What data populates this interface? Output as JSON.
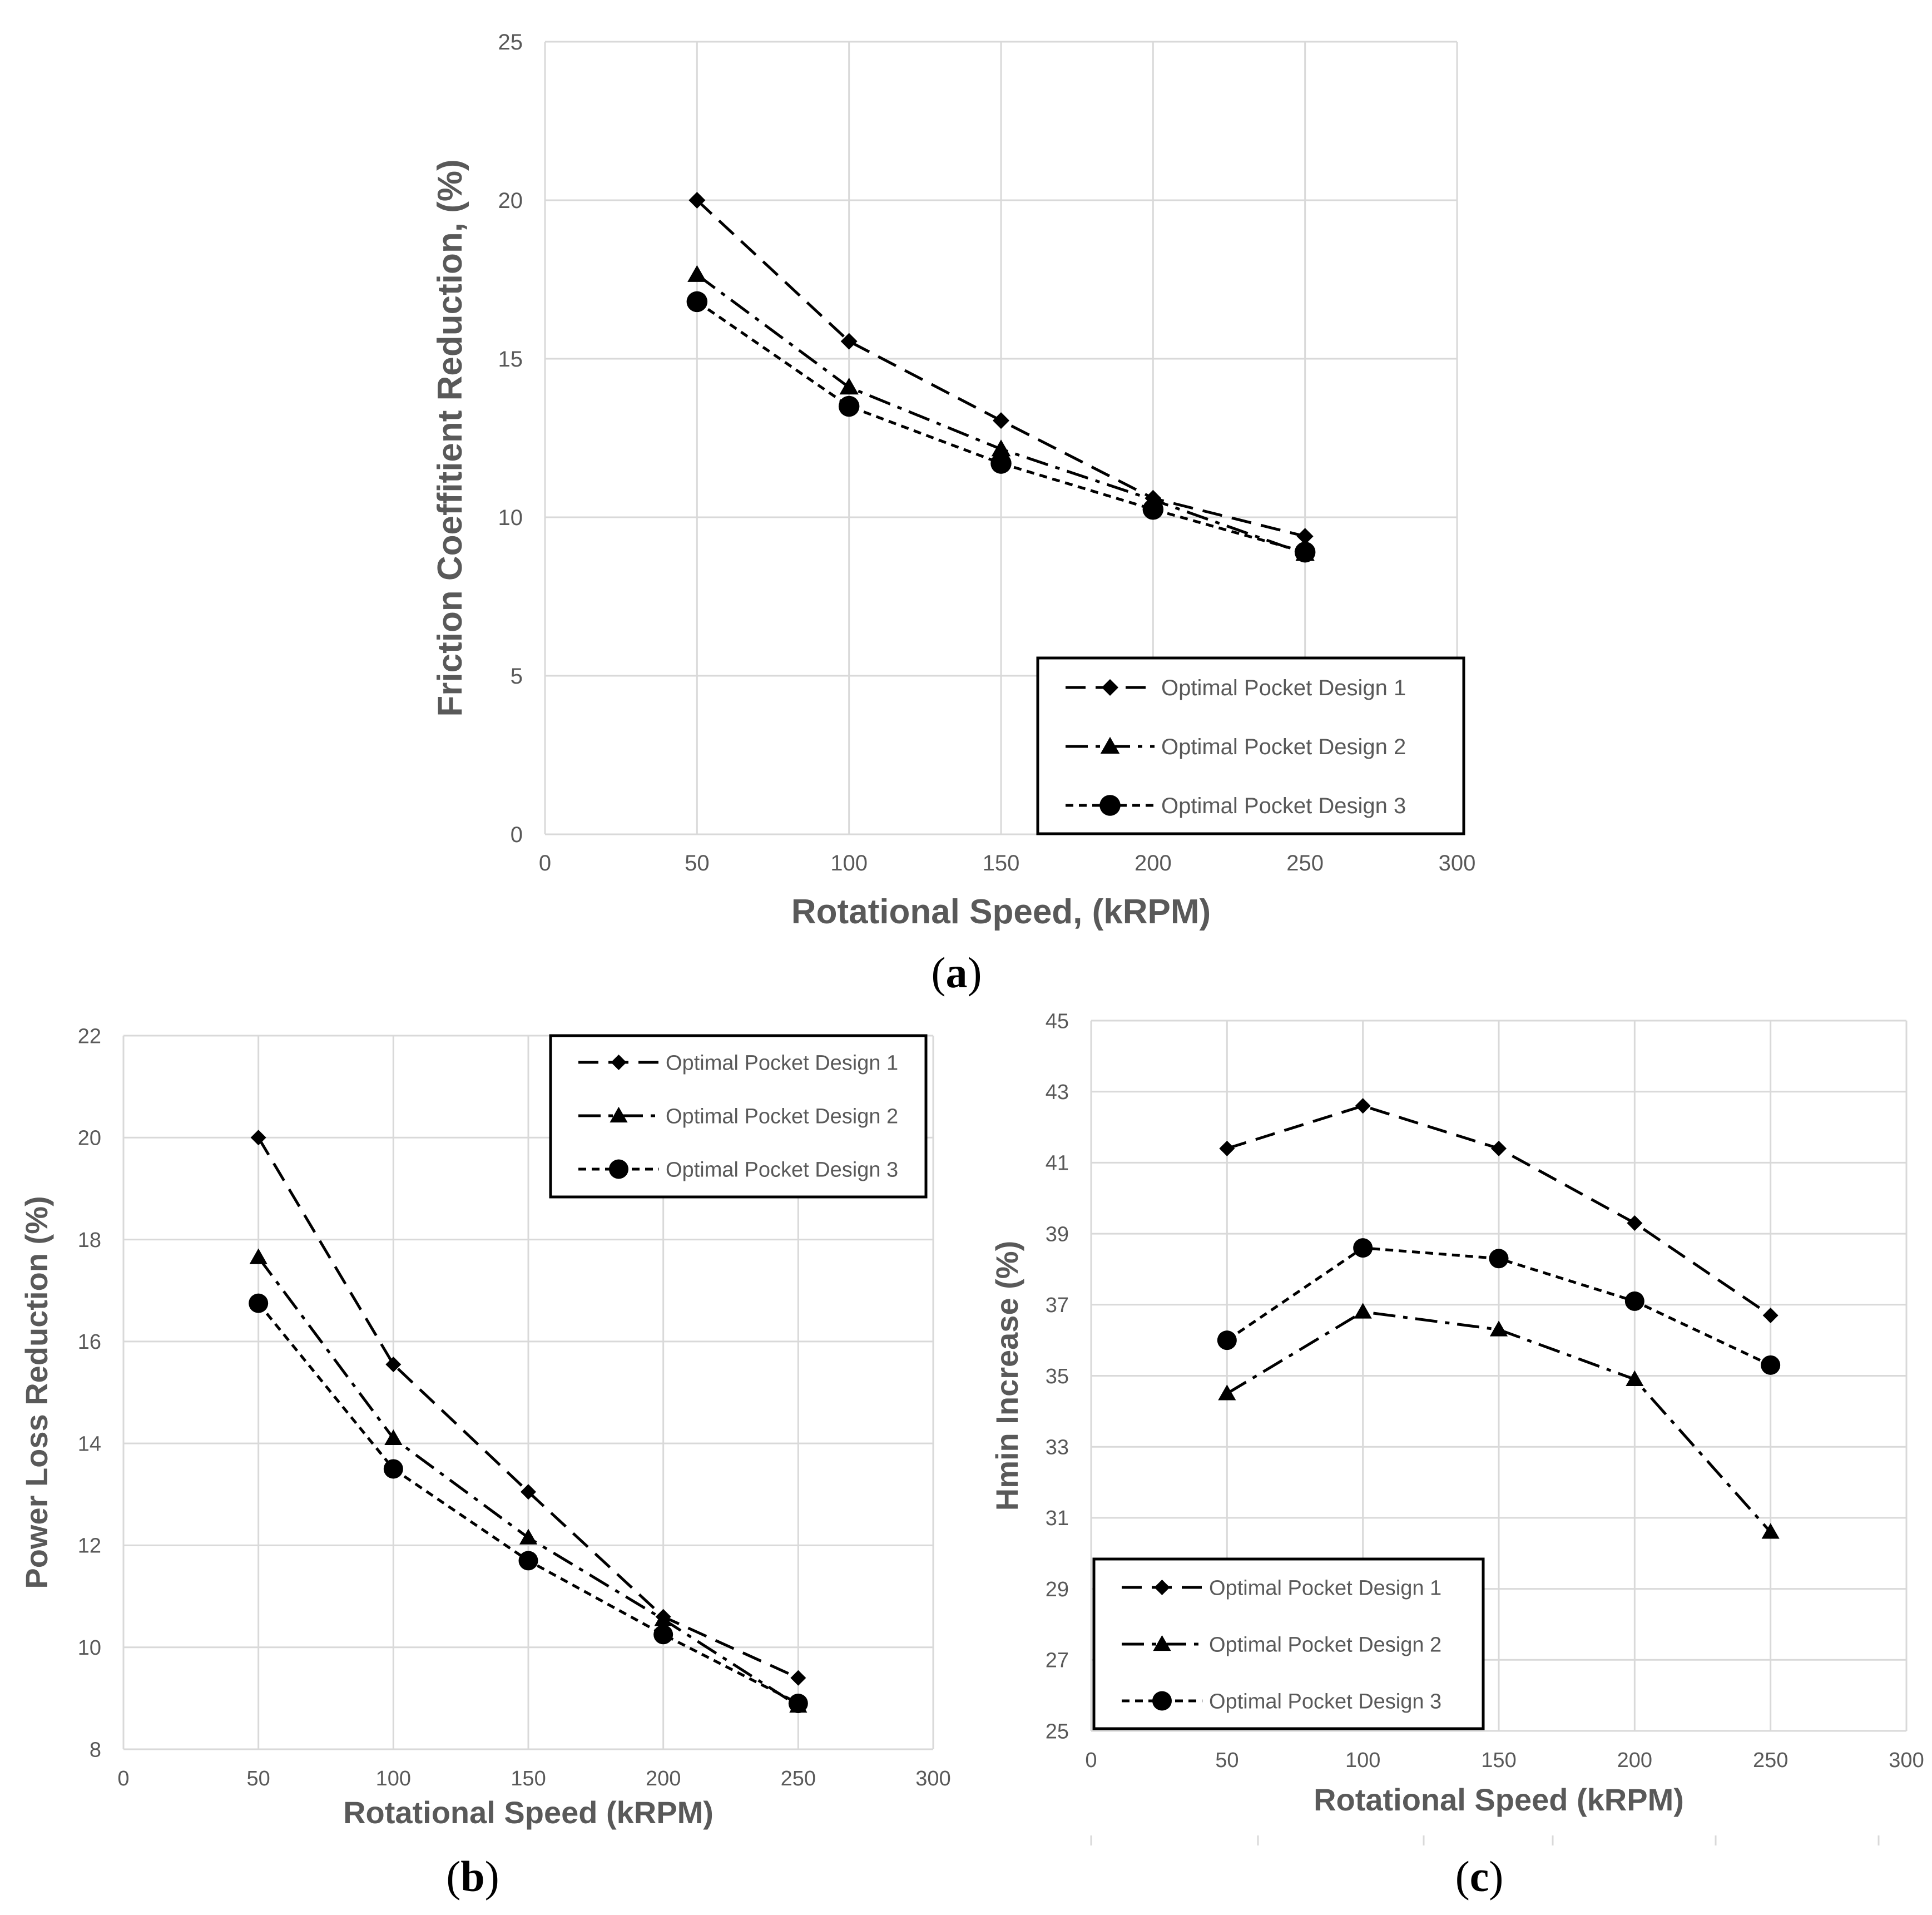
{
  "chart_data": [
    {
      "id": "a",
      "type": "line",
      "caption_open": "(",
      "caption_letter": "a",
      "caption_close": ")",
      "xlabel": "Rotational Speed, (kRPM)",
      "ylabel": "Friction Coeffitient Reduction, (%)",
      "xlim": [
        0,
        300
      ],
      "ylim": [
        0,
        25
      ],
      "xticks": [
        0,
        50,
        100,
        150,
        200,
        250,
        300
      ],
      "yticks": [
        0,
        5,
        10,
        15,
        20,
        25
      ],
      "grid": true,
      "legend_position": "bottom-right",
      "x": [
        50,
        100,
        150,
        200,
        250
      ],
      "series": [
        {
          "name": "Optimal Pocket Design 1",
          "marker": "diamond",
          "dash": "dashed",
          "values": [
            20.0,
            15.55,
            13.05,
            10.6,
            9.4
          ]
        },
        {
          "name": "Optimal Pocket Design 2",
          "marker": "triangle",
          "dash": "dashdot",
          "values": [
            17.65,
            14.1,
            12.15,
            10.55,
            8.85
          ]
        },
        {
          "name": "Optimal Pocket Design 3",
          "marker": "circle",
          "dash": "dotted",
          "values": [
            16.8,
            13.5,
            11.7,
            10.25,
            8.9
          ]
        }
      ]
    },
    {
      "id": "b",
      "type": "line",
      "caption_open": "(",
      "caption_letter": "b",
      "caption_close": ")",
      "xlabel": "Rotational Speed (kRPM)",
      "ylabel": "Power Loss Reduction (%)",
      "xlim": [
        0,
        300
      ],
      "ylim": [
        8,
        22
      ],
      "xticks": [
        0,
        50,
        100,
        150,
        200,
        250,
        300
      ],
      "yticks": [
        8,
        10,
        12,
        14,
        16,
        18,
        20,
        22
      ],
      "grid": true,
      "legend_position": "top-right",
      "x": [
        50,
        100,
        150,
        200,
        250
      ],
      "series": [
        {
          "name": "Optimal Pocket Design 1",
          "marker": "diamond",
          "dash": "dashed",
          "values": [
            20.0,
            15.55,
            13.05,
            10.6,
            9.4
          ]
        },
        {
          "name": "Optimal Pocket Design 2",
          "marker": "triangle",
          "dash": "dashdot",
          "values": [
            17.65,
            14.1,
            12.15,
            10.55,
            8.85
          ]
        },
        {
          "name": "Optimal Pocket Design 3",
          "marker": "circle",
          "dash": "dotted",
          "values": [
            16.75,
            13.5,
            11.7,
            10.25,
            8.9
          ]
        }
      ]
    },
    {
      "id": "c",
      "type": "line",
      "caption_open": "(",
      "caption_letter": "c",
      "caption_close": ")",
      "xlabel": "Rotational Speed (kRPM)",
      "ylabel": "Hmin Increase (%)",
      "xlim": [
        0,
        300
      ],
      "ylim": [
        25,
        45
      ],
      "xticks": [
        0,
        50,
        100,
        150,
        200,
        250,
        300
      ],
      "yticks": [
        25,
        27,
        29,
        31,
        33,
        35,
        37,
        39,
        41,
        43,
        45
      ],
      "grid": true,
      "legend_position": "bottom-left",
      "x": [
        50,
        100,
        150,
        200,
        250
      ],
      "series": [
        {
          "name": "Optimal Pocket Design 1",
          "marker": "diamond",
          "dash": "dashed",
          "values": [
            41.4,
            42.6,
            41.4,
            39.3,
            36.7
          ]
        },
        {
          "name": "Optimal Pocket Design 2",
          "marker": "triangle",
          "dash": "dashdot",
          "values": [
            34.5,
            36.8,
            36.3,
            34.9,
            30.6
          ]
        },
        {
          "name": "Optimal Pocket Design 3",
          "marker": "circle",
          "dash": "dotted",
          "values": [
            36.0,
            38.6,
            38.3,
            37.1,
            35.3
          ]
        }
      ]
    }
  ]
}
